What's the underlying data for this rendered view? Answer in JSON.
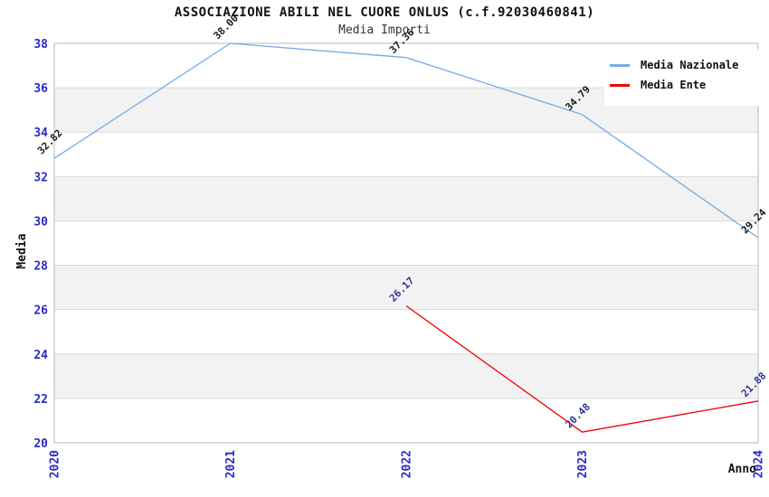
{
  "page": {
    "title": "ASSOCIAZIONE ABILI NEL CUORE ONLUS (c.f.92030460841)",
    "subtitle": "Media Importi"
  },
  "axes": {
    "y_title": "Media",
    "x_title": "Anno"
  },
  "legend": {
    "items": [
      {
        "label": "Media Nazionale",
        "color": "#74ace4"
      },
      {
        "label": "Media Ente",
        "color": "#ee0000"
      }
    ]
  },
  "chart_data": {
    "type": "line",
    "title": "ASSOCIAZIONE ABILI NEL CUORE ONLUS (c.f.92030460841)",
    "subtitle": "Media Importi",
    "xlabel": "Anno",
    "ylabel": "Media",
    "categories": [
      "2020",
      "2021",
      "2022",
      "2023",
      "2024"
    ],
    "series": [
      {
        "name": "Media Nazionale",
        "color": "#74ace4",
        "label_color": "#1a1a1a",
        "values": [
          32.82,
          38.0,
          37.36,
          34.79,
          29.24
        ],
        "labels": [
          "32.82",
          "38.00",
          "37.36",
          "34.79",
          "29.24"
        ]
      },
      {
        "name": "Media Ente",
        "color": "#ee0000",
        "label_color": "#32329b",
        "values": [
          null,
          null,
          26.17,
          20.48,
          21.88
        ],
        "labels": [
          null,
          null,
          "26.17",
          "20.48",
          "21.88"
        ]
      }
    ],
    "ylim": [
      20,
      38
    ],
    "ytick_step": 2,
    "grid": true,
    "legend_position": "top-right",
    "style": {
      "band_color": "#f2f2f2",
      "grid_color": "#d9d9d9",
      "frame_color": "#b9b9b9",
      "tick_label_color": "#2a2ac8",
      "background": "#ffffff"
    }
  }
}
